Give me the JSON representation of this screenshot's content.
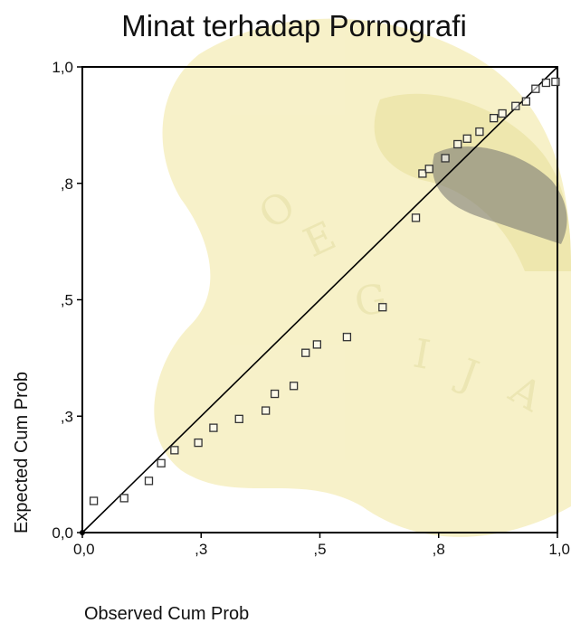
{
  "chart_data": {
    "type": "scatter",
    "title": "Minat terhadap Pornografi",
    "xlabel": "Observed Cum Prob",
    "ylabel": "Expected Cum Prob",
    "xlim": [
      0,
      1
    ],
    "ylim": [
      0,
      1
    ],
    "x_ticks": [
      {
        "value": 0.0,
        "label": "0,0"
      },
      {
        "value": 0.25,
        "label": ",3"
      },
      {
        "value": 0.5,
        "label": ",5"
      },
      {
        "value": 0.75,
        "label": ",8"
      },
      {
        "value": 1.0,
        "label": "1,0"
      }
    ],
    "y_ticks": [
      {
        "value": 0.0,
        "label": "0,0"
      },
      {
        "value": 0.25,
        "label": ",3"
      },
      {
        "value": 0.5,
        "label": ",5"
      },
      {
        "value": 0.75,
        "label": ",8"
      },
      {
        "value": 1.0,
        "label": "1,0"
      }
    ],
    "reference_line": {
      "from": [
        0,
        0
      ],
      "to": [
        1,
        1
      ]
    },
    "points": [
      {
        "x": 0.024,
        "y": 0.068
      },
      {
        "x": 0.088,
        "y": 0.074
      },
      {
        "x": 0.14,
        "y": 0.111
      },
      {
        "x": 0.166,
        "y": 0.149
      },
      {
        "x": 0.194,
        "y": 0.177
      },
      {
        "x": 0.244,
        "y": 0.193
      },
      {
        "x": 0.276,
        "y": 0.225
      },
      {
        "x": 0.33,
        "y": 0.244
      },
      {
        "x": 0.386,
        "y": 0.262
      },
      {
        "x": 0.405,
        "y": 0.298
      },
      {
        "x": 0.445,
        "y": 0.315
      },
      {
        "x": 0.47,
        "y": 0.386
      },
      {
        "x": 0.494,
        "y": 0.404
      },
      {
        "x": 0.557,
        "y": 0.42
      },
      {
        "x": 0.632,
        "y": 0.484
      },
      {
        "x": 0.702,
        "y": 0.676
      },
      {
        "x": 0.716,
        "y": 0.771
      },
      {
        "x": 0.73,
        "y": 0.781
      },
      {
        "x": 0.764,
        "y": 0.804
      },
      {
        "x": 0.79,
        "y": 0.834
      },
      {
        "x": 0.81,
        "y": 0.846
      },
      {
        "x": 0.836,
        "y": 0.861
      },
      {
        "x": 0.866,
        "y": 0.89
      },
      {
        "x": 0.884,
        "y": 0.9
      },
      {
        "x": 0.912,
        "y": 0.916
      },
      {
        "x": 0.934,
        "y": 0.926
      },
      {
        "x": 0.954,
        "y": 0.953
      },
      {
        "x": 0.976,
        "y": 0.966
      },
      {
        "x": 0.996,
        "y": 0.968
      }
    ],
    "grid": false,
    "legend": "none",
    "colors": {
      "marker": "#333333",
      "line": "#000000",
      "watermark": "#f2e8a8"
    }
  }
}
